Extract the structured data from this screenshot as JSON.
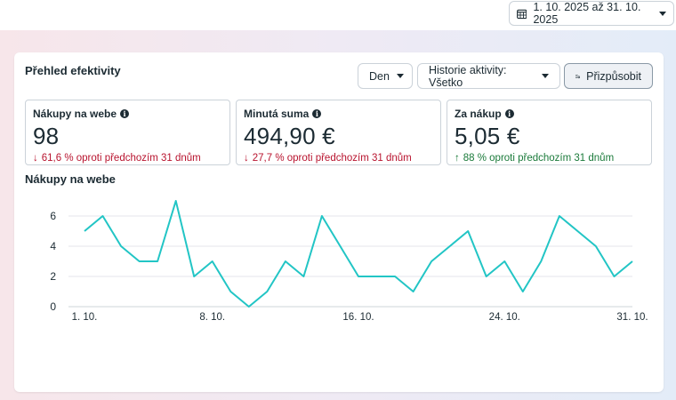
{
  "header": {
    "date_range": "1. 10. 2025 až 31. 10. 2025",
    "calendar_icon": "calendar-icon"
  },
  "panel": {
    "title": "Přehled efektivity",
    "period_dropdown": "Den",
    "history_dropdown": "Historie aktivity: Všetko",
    "customize_button": "Přizpůsobit",
    "customize_icon": "sliders-gear-icon"
  },
  "metrics": [
    {
      "label": "Nákupy na webe",
      "value": "98",
      "delta": "61,6 % oproti předchozím 31 dnům",
      "direction": "down"
    },
    {
      "label": "Minutá suma",
      "value": "494,90 €",
      "delta": "27,7 % oproti předchozím 31 dnům",
      "direction": "down"
    },
    {
      "label": "Za nákup",
      "value": "5,05 €",
      "delta": "88 % oproti předchozím 31 dnům",
      "direction": "up"
    }
  ],
  "colors": {
    "line": "#22c5c5",
    "negative": "#b8132e",
    "positive": "#1a7a3a",
    "grid": "#e4e6eb"
  },
  "chart_data": {
    "type": "line",
    "title": "Nákupy na webe",
    "x_tick_labels": [
      "1. 10.",
      "8. 10.",
      "16. 10.",
      "24. 10.",
      "31. 10."
    ],
    "x_tick_days": [
      1,
      8,
      16,
      24,
      31
    ],
    "y_ticks": [
      0,
      2,
      4,
      6
    ],
    "ylim": [
      0,
      6
    ],
    "grid": true,
    "x": [
      1,
      2,
      3,
      4,
      5,
      6,
      7,
      8,
      9,
      10,
      11,
      12,
      13,
      14,
      15,
      16,
      17,
      18,
      19,
      20,
      21,
      22,
      23,
      24,
      25,
      26,
      27,
      28,
      29,
      30,
      31
    ],
    "values": [
      5,
      6,
      4,
      3,
      3,
      7,
      2,
      3,
      1,
      0,
      1,
      3,
      2,
      6,
      4,
      2,
      2,
      2,
      1,
      3,
      4,
      5,
      2,
      3,
      1,
      3,
      6,
      5,
      4,
      2,
      3
    ]
  }
}
